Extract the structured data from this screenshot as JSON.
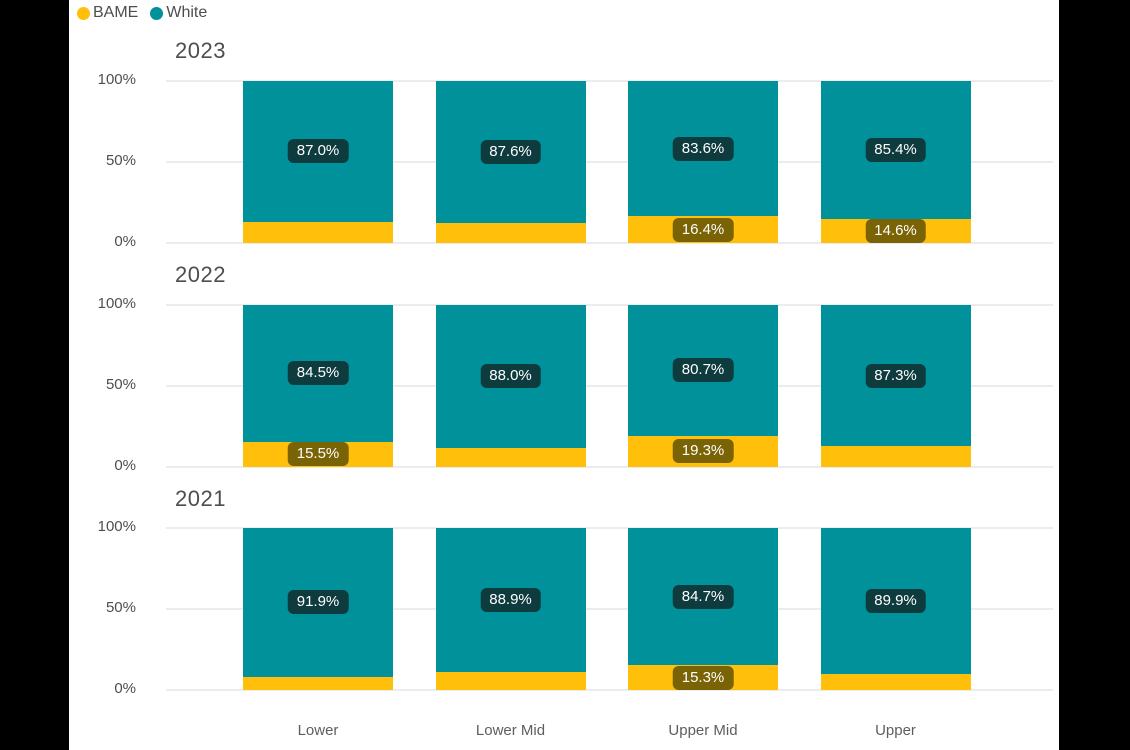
{
  "page": {
    "background": "#000000",
    "content_background": "#FFFFFF"
  },
  "colors": {
    "bame": "#FFBF0A",
    "white": "#00919A",
    "white_label_bg": "#0E3B3E",
    "bame_label_bg": "#7A6304",
    "label_text": "#FFFFFF",
    "axis_text": "#4E4E50",
    "category_text": "#5E5E60",
    "gridline": "#ECECEC"
  },
  "legend": {
    "items": [
      {
        "label": "BAME",
        "color": "#FFBF0A"
      },
      {
        "label": "White",
        "color": "#00919A"
      }
    ]
  },
  "chart_data": {
    "type": "bar",
    "stacked": true,
    "orientation": "vertical",
    "unit": "%",
    "legend_position": "top-left",
    "legend_entries": [
      "BAME",
      "White"
    ],
    "categories": [
      "Lower",
      "Lower Mid",
      "Upper Mid",
      "Upper"
    ],
    "y_axis": {
      "min": 0,
      "max": 100,
      "ticks": [
        "100%",
        "50%",
        "0%"
      ],
      "grid": true
    },
    "panels": [
      {
        "title": "2023",
        "series": [
          {
            "name": "BAME",
            "values": [
              13.0,
              12.4,
              16.4,
              14.6
            ],
            "data_labels": [
              "",
              "",
              "16.4%",
              "14.6%"
            ]
          },
          {
            "name": "White",
            "values": [
              87.0,
              87.6,
              83.6,
              85.4
            ],
            "data_labels": [
              "87.0%",
              "87.6%",
              "83.6%",
              "85.4%"
            ]
          }
        ]
      },
      {
        "title": "2022",
        "series": [
          {
            "name": "BAME",
            "values": [
              15.5,
              12.0,
              19.3,
              12.7
            ],
            "data_labels": [
              "15.5%",
              "",
              "19.3%",
              ""
            ]
          },
          {
            "name": "White",
            "values": [
              84.5,
              88.0,
              80.7,
              87.3
            ],
            "data_labels": [
              "84.5%",
              "88.0%",
              "80.7%",
              "87.3%"
            ]
          }
        ]
      },
      {
        "title": "2021",
        "series": [
          {
            "name": "BAME",
            "values": [
              8.1,
              11.1,
              15.3,
              10.1
            ],
            "data_labels": [
              "",
              "",
              "15.3%",
              ""
            ]
          },
          {
            "name": "White",
            "values": [
              91.9,
              88.9,
              84.7,
              89.9
            ],
            "data_labels": [
              "91.9%",
              "88.9%",
              "84.7%",
              "89.9%"
            ]
          }
        ]
      }
    ]
  }
}
